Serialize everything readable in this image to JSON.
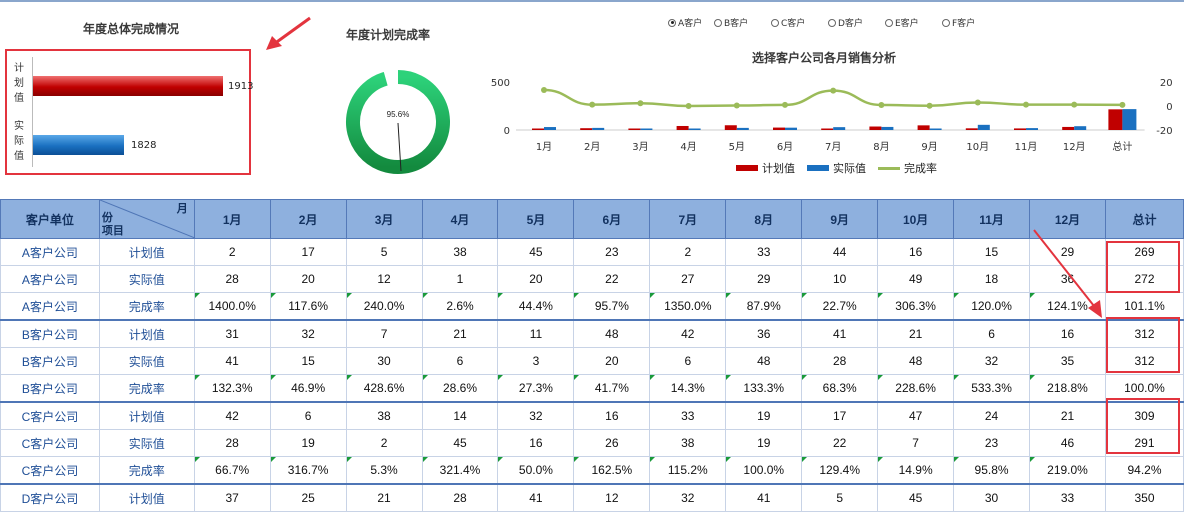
{
  "panels": {
    "annual_title": "年度总体完成情况",
    "rate_title": "年度计划完成率",
    "line_title": "选择客户公司各月销售分析"
  },
  "bar_panel": {
    "plan_label": "计划值",
    "actual_label": "实际值",
    "plan_value": "1913",
    "actual_value": "1828"
  },
  "donut": {
    "value_label": "95.6%",
    "fraction": 0.956
  },
  "radio": [
    {
      "label": "A客户",
      "selected": true
    },
    {
      "label": "B客户",
      "selected": false
    },
    {
      "label": "C客户",
      "selected": false
    },
    {
      "label": "D客户",
      "selected": false
    },
    {
      "label": "E客户",
      "selected": false
    },
    {
      "label": "F客户",
      "selected": false
    }
  ],
  "chart_data": {
    "type": "bar",
    "title": "选择客户公司各月销售分析",
    "categories": [
      "1月",
      "2月",
      "3月",
      "4月",
      "5月",
      "6月",
      "7月",
      "8月",
      "9月",
      "10月",
      "11月",
      "12月",
      "总计"
    ],
    "y_left_ticks": [
      "500",
      "0"
    ],
    "y_right_ticks": [
      "20",
      "0",
      "-20"
    ],
    "ylim_left": [
      0,
      500
    ],
    "ylim_right": [
      -20,
      20
    ],
    "series": [
      {
        "name": "计划值",
        "type": "bar",
        "axis": "left",
        "color": "#c00000",
        "values": [
          2,
          17,
          5,
          38,
          45,
          23,
          2,
          33,
          44,
          16,
          15,
          29,
          269
        ]
      },
      {
        "name": "实际值",
        "type": "bar",
        "axis": "left",
        "color": "#1a70c0",
        "values": [
          28,
          20,
          12,
          1,
          20,
          22,
          27,
          29,
          10,
          49,
          18,
          36,
          272
        ]
      },
      {
        "name": "完成率",
        "type": "line",
        "axis": "right",
        "color": "#9bbb59",
        "values": [
          14.0,
          1.176,
          2.4,
          0.026,
          0.444,
          0.957,
          13.5,
          0.879,
          0.227,
          3.063,
          1.2,
          1.241,
          1.011
        ]
      }
    ]
  },
  "table": {
    "header_first": "客户单位",
    "header_diag_top": "月",
    "header_diag_bottom": "份\n项目",
    "months": [
      "1月",
      "2月",
      "3月",
      "4月",
      "5月",
      "6月",
      "7月",
      "8月",
      "9月",
      "10月",
      "11月",
      "12月",
      "总计"
    ],
    "rows": [
      {
        "company": "A客户公司",
        "item": "计划值",
        "values": [
          "2",
          "17",
          "5",
          "38",
          "45",
          "23",
          "2",
          "33",
          "44",
          "16",
          "15",
          "29",
          "269"
        ]
      },
      {
        "company": "A客户公司",
        "item": "实际值",
        "values": [
          "28",
          "20",
          "12",
          "1",
          "20",
          "22",
          "27",
          "29",
          "10",
          "49",
          "18",
          "36",
          "272"
        ]
      },
      {
        "company": "A客户公司",
        "item": "完成率",
        "values": [
          "1400.0%",
          "117.6%",
          "240.0%",
          "2.6%",
          "44.4%",
          "95.7%",
          "1350.0%",
          "87.9%",
          "22.7%",
          "306.3%",
          "120.0%",
          "124.1%",
          "101.1%"
        ]
      },
      {
        "company": "B客户公司",
        "item": "计划值",
        "values": [
          "31",
          "32",
          "7",
          "21",
          "11",
          "48",
          "42",
          "36",
          "41",
          "21",
          "6",
          "16",
          "312"
        ]
      },
      {
        "company": "B客户公司",
        "item": "实际值",
        "values": [
          "41",
          "15",
          "30",
          "6",
          "3",
          "20",
          "6",
          "48",
          "28",
          "48",
          "32",
          "35",
          "312"
        ]
      },
      {
        "company": "B客户公司",
        "item": "完成率",
        "values": [
          "132.3%",
          "46.9%",
          "428.6%",
          "28.6%",
          "27.3%",
          "41.7%",
          "14.3%",
          "133.3%",
          "68.3%",
          "228.6%",
          "533.3%",
          "218.8%",
          "100.0%"
        ]
      },
      {
        "company": "C客户公司",
        "item": "计划值",
        "values": [
          "42",
          "6",
          "38",
          "14",
          "32",
          "16",
          "33",
          "19",
          "17",
          "47",
          "24",
          "21",
          "309"
        ]
      },
      {
        "company": "C客户公司",
        "item": "实际值",
        "values": [
          "28",
          "19",
          "2",
          "45",
          "16",
          "26",
          "38",
          "19",
          "22",
          "7",
          "23",
          "46",
          "291"
        ]
      },
      {
        "company": "C客户公司",
        "item": "完成率",
        "values": [
          "66.7%",
          "316.7%",
          "5.3%",
          "321.4%",
          "50.0%",
          "162.5%",
          "115.2%",
          "100.0%",
          "129.4%",
          "14.9%",
          "95.8%",
          "219.0%",
          "94.2%"
        ]
      },
      {
        "company": "D客户公司",
        "item": "计划值",
        "values": [
          "37",
          "25",
          "21",
          "28",
          "41",
          "12",
          "32",
          "41",
          "5",
          "45",
          "30",
          "33",
          "350"
        ]
      }
    ]
  },
  "colors": {
    "header_bg": "#8eb0de",
    "plan_red": "#c00000",
    "actual_blue": "#1a70c0",
    "rate_green": "#9bbb59",
    "donut_green": "#1fae55",
    "annotation_red": "#e3343e"
  }
}
